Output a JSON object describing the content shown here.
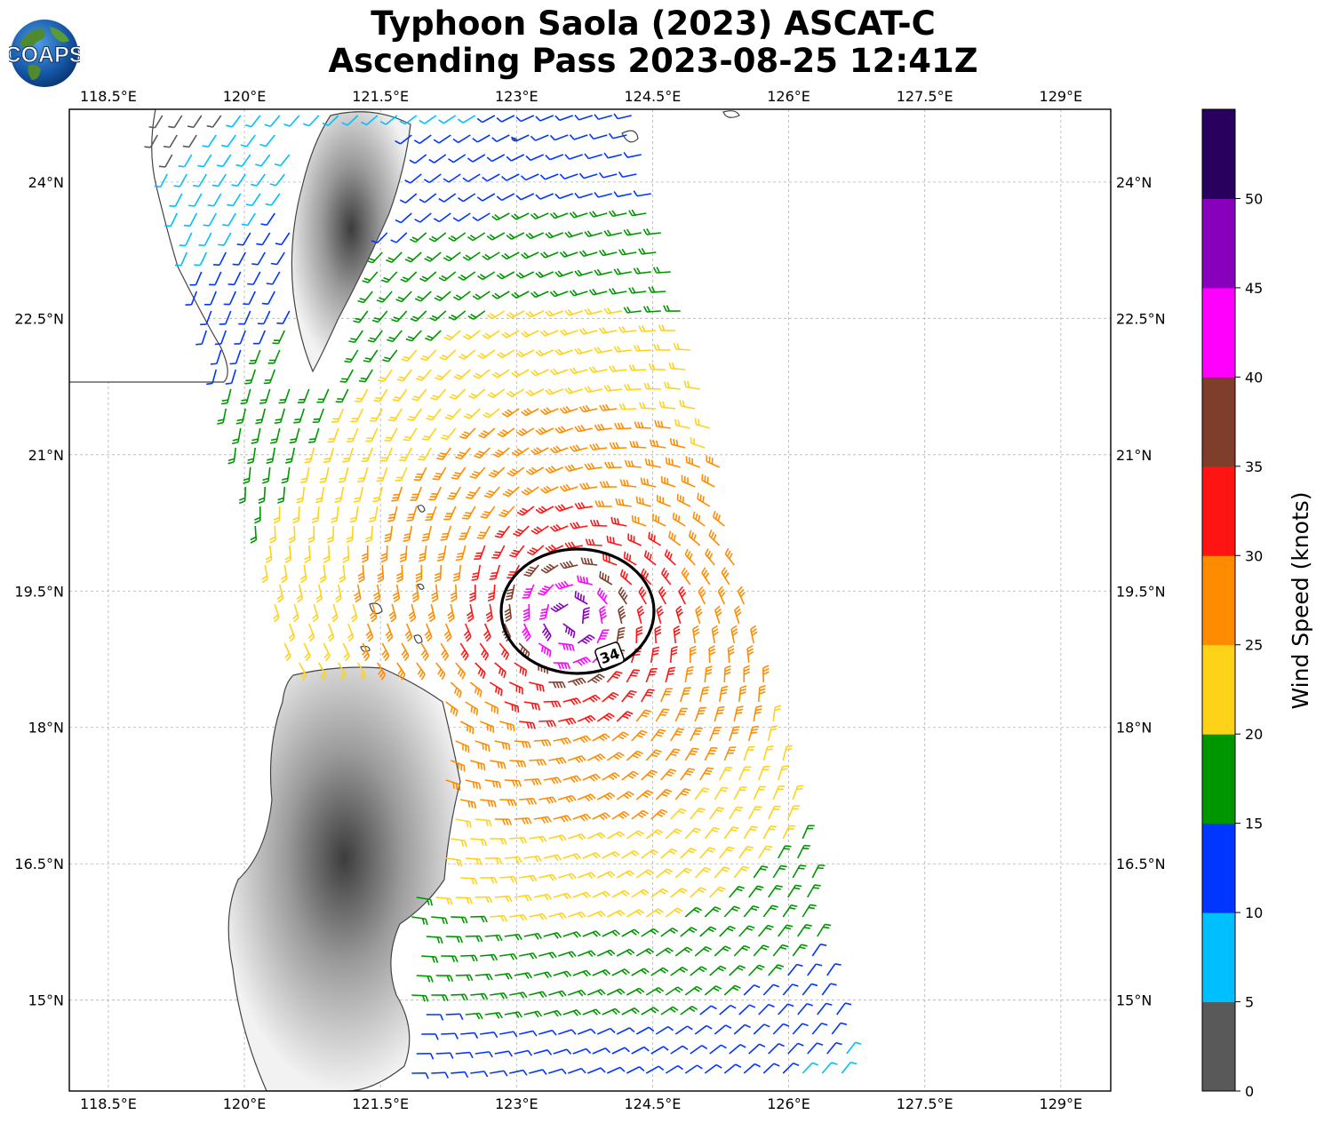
{
  "title": {
    "line1": "Typhoon Saola (2023) ASCAT-C",
    "line2": "Ascending Pass 2023-08-25 12:41Z"
  },
  "logo": {
    "text": "COAPS"
  },
  "map": {
    "lon_range": [
      118.07,
      129.55
    ],
    "lat_range": [
      14.0,
      24.8
    ],
    "lon_ticks": [
      "118.5°E",
      "120°E",
      "121.5°E",
      "123°E",
      "124.5°E",
      "126°E",
      "127.5°E",
      "129°E"
    ],
    "lat_ticks": [
      "24°N",
      "22.5°N",
      "21°N",
      "19.5°N",
      "18°N",
      "16.5°N",
      "15°N"
    ],
    "lon_tick_values": [
      118.5,
      120,
      121.5,
      123,
      124.5,
      126,
      127.5,
      129
    ],
    "lat_tick_values": [
      24,
      22.5,
      21,
      19.5,
      18,
      16.5,
      15
    ],
    "grid": true,
    "storm_center": {
      "lon": 123.6,
      "lat": 19.2
    },
    "contour_label": "34",
    "contour_knots": 34,
    "contour_color": "#000000"
  },
  "colorbar": {
    "label": "Wind Speed (knots)",
    "ticks": [
      "0",
      "5",
      "10",
      "15",
      "20",
      "25",
      "30",
      "35",
      "40",
      "45",
      "50"
    ],
    "colors": [
      "#595959",
      "#00bfff",
      "#0036ff",
      "#009600",
      "#ffd21a",
      "#ff8c00",
      "#ff1414",
      "#7f3e2c",
      "#ff00ff",
      "#8800bb",
      "#2a005f"
    ]
  }
}
